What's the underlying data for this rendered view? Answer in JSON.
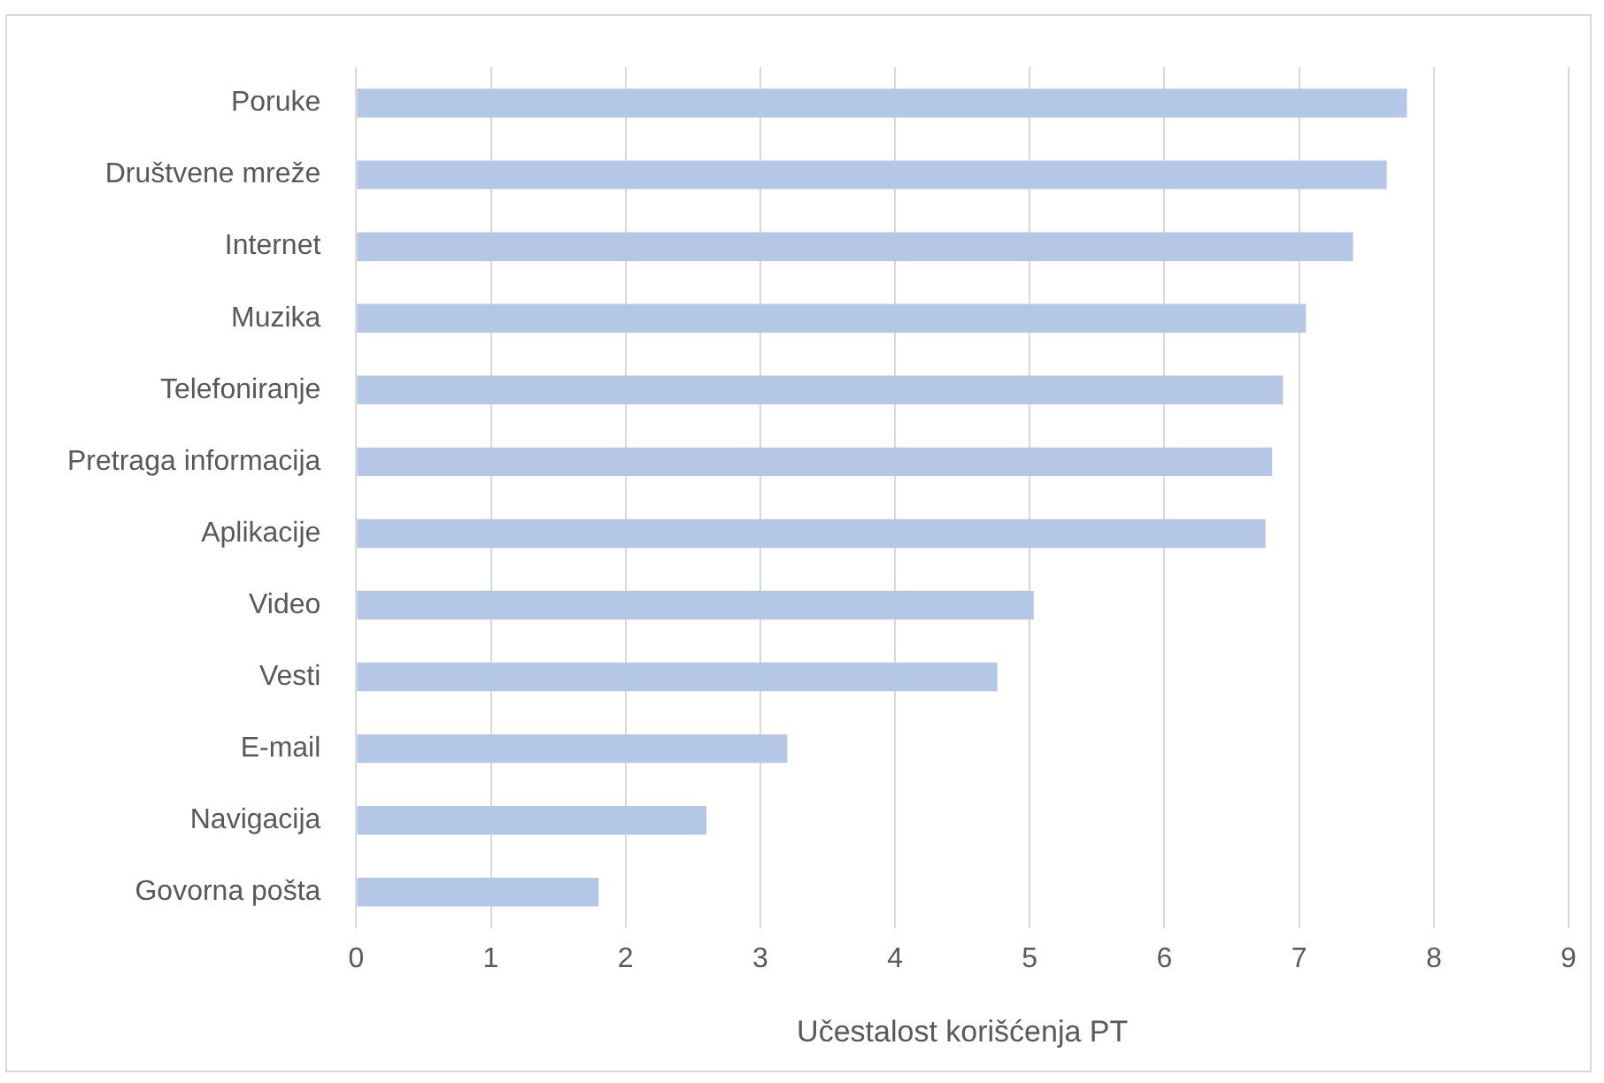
{
  "chart_data": {
    "type": "bar",
    "orientation": "horizontal",
    "categories": [
      "Poruke",
      "Društvene mreže",
      "Internet",
      "Muzika",
      "Telefoniranje",
      "Pretraga informacija",
      "Aplikacije",
      "Video",
      "Vesti",
      "E-mail",
      "Navigacija",
      "Govorna pošta"
    ],
    "values": [
      7.8,
      7.65,
      7.4,
      7.05,
      6.88,
      6.8,
      6.75,
      5.03,
      4.76,
      3.2,
      2.6,
      1.8
    ],
    "color": "#b4c7e7",
    "xlabel": "Učestalost korišćenja PT",
    "xlim": [
      0,
      9
    ],
    "xticks": [
      0,
      1,
      2,
      3,
      4,
      5,
      6,
      7,
      8,
      9
    ],
    "grid": "x",
    "legend": false
  }
}
